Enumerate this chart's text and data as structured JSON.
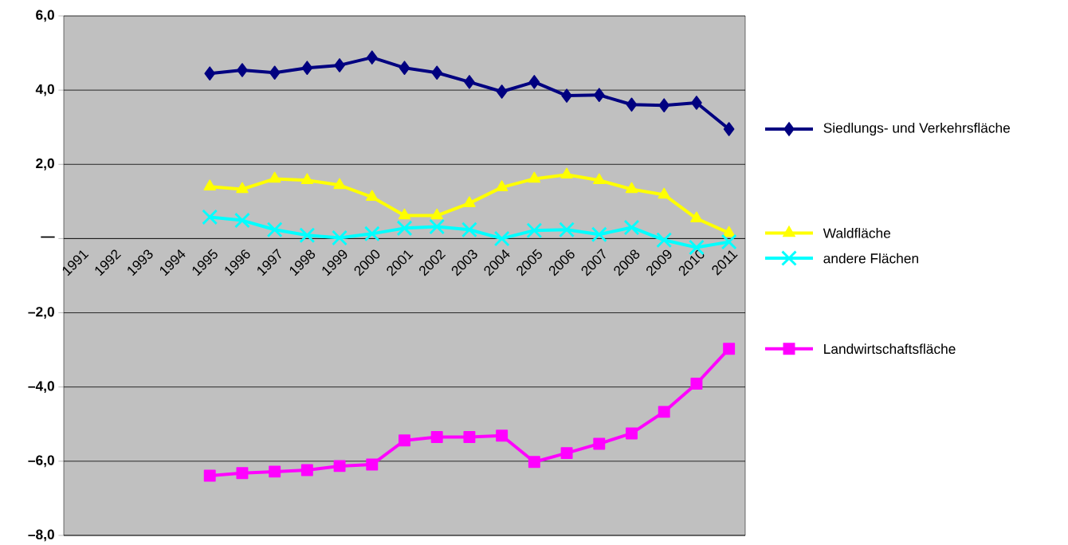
{
  "chart_data": {
    "type": "line",
    "categories": [
      "1991",
      "1992",
      "1993",
      "1994",
      "1995",
      "1996",
      "1997",
      "1998",
      "1999",
      "2000",
      "2001",
      "2002",
      "2003",
      "2004",
      "2005",
      "2006",
      "2007",
      "2008",
      "2009",
      "2010",
      "2011"
    ],
    "series": [
      {
        "name": "Siedlungs- und Verkehrsfläche",
        "color": "#000080",
        "marker": "diamond",
        "values": [
          null,
          null,
          null,
          null,
          4.45,
          4.54,
          4.47,
          4.6,
          4.67,
          4.88,
          4.6,
          4.47,
          4.22,
          3.96,
          4.22,
          3.85,
          3.87,
          3.61,
          3.59,
          3.66,
          2.95
        ]
      },
      {
        "name": "Waldfläche",
        "color": "#ffff00",
        "marker": "triangle",
        "values": [
          null,
          null,
          null,
          null,
          1.4,
          1.33,
          1.61,
          1.57,
          1.44,
          1.12,
          0.62,
          0.62,
          0.95,
          1.38,
          1.61,
          1.72,
          1.57,
          1.33,
          1.18,
          0.54,
          0.15
        ]
      },
      {
        "name": "andere Flächen",
        "color": "#00ffff",
        "marker": "cross",
        "values": [
          null,
          null,
          null,
          null,
          0.58,
          0.49,
          0.24,
          0.09,
          0.02,
          0.13,
          0.28,
          0.32,
          0.24,
          0.0,
          0.22,
          0.24,
          0.11,
          0.3,
          -0.04,
          -0.24,
          -0.09
        ]
      },
      {
        "name": "Landwirtschaftsfläche",
        "color": "#ff00ff",
        "marker": "square",
        "values": [
          null,
          null,
          null,
          null,
          -6.39,
          -6.32,
          -6.28,
          -6.24,
          -6.13,
          -6.09,
          -5.44,
          -5.35,
          -5.35,
          -5.31,
          -6.02,
          -5.78,
          -5.53,
          -5.25,
          -4.67,
          -3.91,
          -2.97
        ]
      }
    ],
    "ylim": [
      -8,
      6
    ],
    "yticks": [
      {
        "value": -8,
        "label": "–8,0"
      },
      {
        "value": -6,
        "label": "–6,0"
      },
      {
        "value": -4,
        "label": "–4,0"
      },
      {
        "value": -2,
        "label": "–2,0"
      },
      {
        "value": 0,
        "label": "—"
      },
      {
        "value": 2,
        "label": "2,0"
      },
      {
        "value": 4,
        "label": "4,0"
      },
      {
        "value": 6,
        "label": "6,0"
      }
    ],
    "grid": "y",
    "legend": "right",
    "line_style": "solid"
  }
}
